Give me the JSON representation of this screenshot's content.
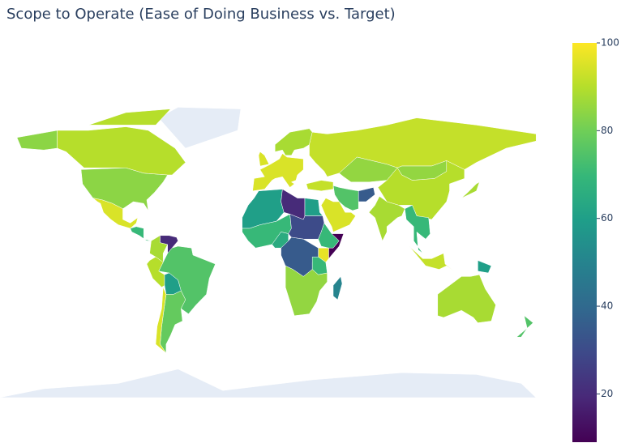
{
  "chart_data": {
    "type": "choropleth",
    "title": "Scope to Operate (Ease of Doing Business vs. Target)",
    "colorscale": "viridis",
    "zlim": [
      9,
      100
    ],
    "zticks": [
      20,
      40,
      60,
      80,
      100
    ],
    "values": [
      84,
      90,
      95,
      70,
      88,
      20,
      75,
      90,
      60,
      78,
      95,
      95,
      95,
      88,
      92,
      85,
      85,
      90,
      88,
      70,
      75,
      92,
      95,
      35,
      60,
      20,
      60,
      70,
      65,
      30,
      70,
      9,
      97,
      35,
      70,
      85,
      50,
      92,
      60,
      88,
      88,
      75
    ]
  }
}
